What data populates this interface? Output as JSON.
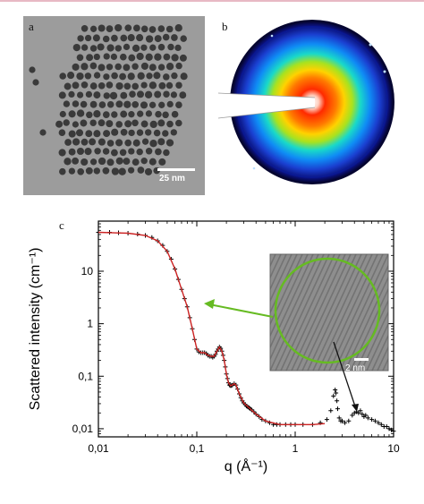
{
  "panels": {
    "a": {
      "label": "a",
      "scale_bar": "25 nm"
    },
    "b": {
      "label": "b"
    },
    "c": {
      "label": "c"
    }
  },
  "inset": {
    "scale_bar": "2 nm"
  },
  "chart_data": {
    "type": "line",
    "ylabel": "Scattered intensity (cm⁻¹)",
    "xlabel": "q (Å⁻¹)",
    "x_scale": "log",
    "y_scale": "log",
    "xlim": [
      0.01,
      10
    ],
    "ylim": [
      0.007,
      90
    ],
    "x_tick_labels": [
      "0,01",
      "0,1",
      "1",
      "10"
    ],
    "y_tick_labels": [
      "0,01",
      "0,1",
      "1",
      "10"
    ],
    "series": [
      {
        "marker": "+",
        "color": "#000000",
        "x": [
          0.01,
          0.013,
          0.016,
          0.02,
          0.025,
          0.03,
          0.035,
          0.04,
          0.045,
          0.05,
          0.055,
          0.06,
          0.065,
          0.07,
          0.075,
          0.08,
          0.085,
          0.09,
          0.095,
          0.1,
          0.105,
          0.11,
          0.115,
          0.12,
          0.125,
          0.13,
          0.135,
          0.14,
          0.145,
          0.15,
          0.155,
          0.16,
          0.165,
          0.17,
          0.175,
          0.18,
          0.185,
          0.19,
          0.195,
          0.2,
          0.205,
          0.21,
          0.215,
          0.22,
          0.225,
          0.23,
          0.24,
          0.25,
          0.26,
          0.27,
          0.28,
          0.29,
          0.3,
          0.31,
          0.32,
          0.33,
          0.34,
          0.35,
          0.36,
          0.38,
          0.4,
          0.43,
          0.46,
          0.5,
          0.55,
          0.6,
          0.65,
          0.7,
          0.8,
          0.9,
          1.0,
          1.2,
          1.5,
          1.8,
          2.1,
          2.3,
          2.45,
          2.55,
          2.6,
          2.65,
          2.7,
          2.8,
          2.9,
          3.0,
          3.2,
          3.5,
          3.8,
          4.0,
          4.2,
          4.4,
          4.6,
          4.8,
          5.0,
          5.2,
          5.5,
          6.0,
          6.5,
          7.0,
          7.5,
          8.0,
          8.5,
          9.0,
          9.5,
          10.0
        ],
        "y": [
          55,
          55,
          54,
          53,
          51,
          48,
          44,
          38,
          31,
          24,
          17,
          11,
          7,
          4.5,
          3,
          2.1,
          1.3,
          0.8,
          0.5,
          0.33,
          0.29,
          0.28,
          0.28,
          0.28,
          0.27,
          0.25,
          0.24,
          0.24,
          0.23,
          0.24,
          0.26,
          0.3,
          0.33,
          0.36,
          0.34,
          0.3,
          0.25,
          0.2,
          0.15,
          0.11,
          0.09,
          0.075,
          0.068,
          0.066,
          0.066,
          0.068,
          0.072,
          0.068,
          0.057,
          0.046,
          0.039,
          0.034,
          0.031,
          0.029,
          0.027,
          0.026,
          0.025,
          0.024,
          0.023,
          0.021,
          0.019,
          0.017,
          0.015,
          0.014,
          0.013,
          0.012,
          0.012,
          0.012,
          0.012,
          0.012,
          0.012,
          0.012,
          0.012,
          0.013,
          0.015,
          0.022,
          0.042,
          0.055,
          0.048,
          0.034,
          0.024,
          0.016,
          0.014,
          0.014,
          0.013,
          0.014,
          0.018,
          0.02,
          0.021,
          0.02,
          0.022,
          0.019,
          0.017,
          0.018,
          0.016,
          0.015,
          0.014,
          0.013,
          0.012,
          0.011,
          0.011,
          0.01,
          0.0095,
          0.009
        ]
      },
      {
        "style": "fit-line",
        "color": "#cc2222",
        "x": [
          0.01,
          0.02,
          0.03,
          0.04,
          0.05,
          0.06,
          0.07,
          0.08,
          0.09,
          0.1,
          0.11,
          0.12,
          0.13,
          0.14,
          0.15,
          0.16,
          0.17,
          0.18,
          0.19,
          0.2,
          0.21,
          0.22,
          0.23,
          0.24,
          0.25,
          0.27,
          0.3,
          0.34,
          0.4,
          0.5,
          0.7,
          1.0,
          1.5,
          2.0
        ],
        "y": [
          55,
          53,
          48,
          38,
          24,
          11,
          4.5,
          2.1,
          0.8,
          0.33,
          0.28,
          0.28,
          0.25,
          0.24,
          0.24,
          0.3,
          0.36,
          0.3,
          0.2,
          0.11,
          0.075,
          0.066,
          0.068,
          0.072,
          0.068,
          0.046,
          0.031,
          0.025,
          0.019,
          0.014,
          0.012,
          0.012,
          0.012,
          0.0125
        ]
      }
    ]
  }
}
